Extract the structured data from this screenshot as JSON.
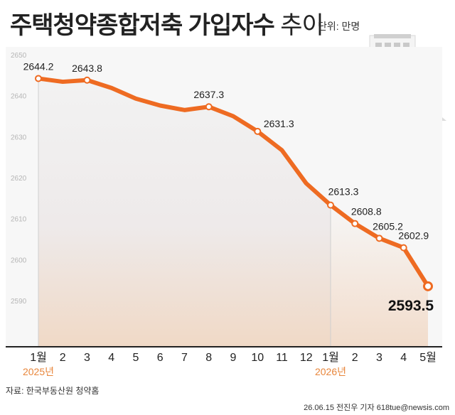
{
  "title": {
    "bold": "주택청약종합저축 가입자수",
    "light": "추이"
  },
  "unit": "단위: 만명",
  "source": "자료: 한국부동산원 청약홈",
  "credit": "26.06.15 전진우 기자 618tue@newsis.com",
  "colors": {
    "line": "#ee6b22",
    "marker_fill": "#ffffff",
    "title": "#222222",
    "year_label": "#e8863b"
  },
  "icon": "apartment-building-icon",
  "chart_data": {
    "type": "line",
    "title": "주택청약종합저축 가입자수 추이",
    "ylabel": "",
    "xlabel": "",
    "ylim": [
      2585,
      2652
    ],
    "yticks": [
      2590,
      2600,
      2610,
      2620,
      2630,
      2640,
      2650
    ],
    "categories": [
      "1월",
      "2",
      "3",
      "4",
      "5",
      "6",
      "7",
      "8",
      "9",
      "10",
      "11",
      "12",
      "1월",
      "2",
      "3",
      "4",
      "5월"
    ],
    "year_labels": [
      {
        "index": 0,
        "text": "2025년"
      },
      {
        "index": 12,
        "text": "2026년"
      }
    ],
    "values": [
      2644.2,
      2643.4,
      2643.8,
      2641.9,
      2639.3,
      2637.6,
      2636.5,
      2637.3,
      2635.0,
      2631.3,
      2626.7,
      2618.6,
      2613.3,
      2608.8,
      2605.2,
      2602.9,
      2593.5
    ],
    "labeled_points": [
      0,
      2,
      7,
      9,
      12,
      13,
      14,
      15,
      16
    ],
    "data_labels": {
      "0": "2644.2",
      "2": "2643.8",
      "7": "2637.3",
      "9": "2631.3",
      "12": "2613.3",
      "13": "2608.8",
      "14": "2605.2",
      "15": "2602.9",
      "16": "2593.5"
    },
    "grid": false
  }
}
